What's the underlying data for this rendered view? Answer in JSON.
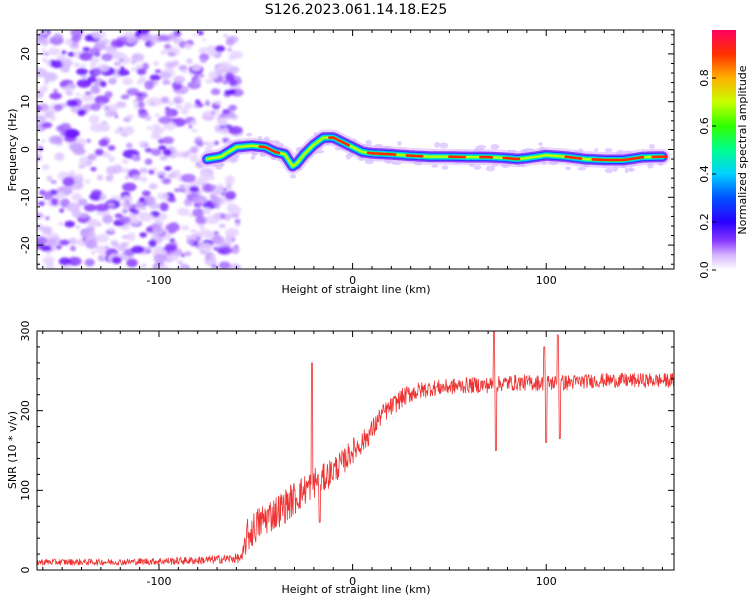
{
  "title": "S126.2023.061.14.18.E25",
  "chart_data": [
    {
      "type": "heatmap",
      "title": "S126.2023.061.14.18.E25",
      "xlabel": "Height of straight line (km)",
      "ylabel": "Frequency (Hz)",
      "xlim": [
        -163,
        166
      ],
      "ylim": [
        -25,
        25
      ],
      "xticks": [
        -100,
        0,
        100
      ],
      "yticks": [
        -20,
        -10,
        0,
        10,
        20
      ],
      "grid": false,
      "description_series": [
        {
          "name": "noise region",
          "x_range": [
            -163,
            -65
          ],
          "freq_range": [
            -25,
            25
          ],
          "amplitude_range": [
            0.1,
            0.3
          ]
        },
        {
          "name": "signal ridge (centre frequency Hz vs height km)",
          "x": [
            -75,
            -68,
            -60,
            -52,
            -45,
            -40,
            -35,
            -31,
            -29,
            -25,
            -20,
            -15,
            -10,
            -5,
            0,
            5,
            10,
            20,
            30,
            40,
            50,
            60,
            70,
            80,
            85,
            90,
            95,
            100,
            110,
            120,
            130,
            140,
            150,
            160
          ],
          "y": [
            -2,
            -1.5,
            0.5,
            0.8,
            0.5,
            -0.5,
            -1,
            -3.5,
            -3,
            -1,
            1,
            2.5,
            2.5,
            1.5,
            0.5,
            -0.5,
            -0.8,
            -1,
            -1.3,
            -1.5,
            -1.5,
            -1.6,
            -1.6,
            -1.8,
            -2,
            -1.8,
            -1.5,
            -1.2,
            -1.5,
            -2,
            -2.2,
            -2.2,
            -1.6,
            -1.5
          ]
        }
      ],
      "colorbar": {
        "label": "Normalized spectral amplitude",
        "range": [
          0,
          1
        ],
        "ticks": [
          "0.0",
          "0.2",
          "0.4",
          "0.6",
          "0.8"
        ],
        "tick_values": [
          0.0,
          0.2,
          0.4,
          0.6,
          0.8
        ],
        "colormap": [
          "#ffffff",
          "#a855f7",
          "#4b00ff",
          "#0040ff",
          "#00ccff",
          "#00ff80",
          "#40ff00",
          "#ccff00",
          "#ffcc00",
          "#ff4000",
          "#ff0050"
        ]
      }
    },
    {
      "type": "line",
      "xlabel": "Height of straight line (km)",
      "ylabel": "SNR (10 * v/v)",
      "xlim": [
        -163,
        166
      ],
      "ylim": [
        0,
        300
      ],
      "xticks": [
        -100,
        0,
        100
      ],
      "yticks": [
        0,
        100,
        200,
        300
      ],
      "grid": false,
      "series": [
        {
          "name": "SNR",
          "color": "#ee3333",
          "x": [
            -163,
            -120,
            -80,
            -57,
            -55,
            -50,
            -45,
            -40,
            -35,
            -30,
            -25,
            -20,
            -15,
            -10,
            -5,
            0,
            5,
            10,
            15,
            20,
            25,
            30,
            40,
            50,
            60,
            70,
            80,
            90,
            100,
            110,
            120,
            130,
            140,
            150,
            166
          ],
          "y": [
            10,
            10,
            12,
            15,
            40,
            55,
            65,
            72,
            80,
            90,
            100,
            110,
            115,
            125,
            135,
            150,
            160,
            175,
            195,
            205,
            215,
            222,
            228,
            230,
            232,
            232,
            235,
            235,
            235,
            235,
            237,
            238,
            238,
            238,
            238
          ],
          "noise_amplitude": [
            4,
            4,
            5,
            6,
            22,
            22,
            22,
            22,
            22,
            22,
            20,
            20,
            18,
            18,
            16,
            16,
            14,
            14,
            12,
            12,
            12,
            12,
            10,
            10,
            10,
            10,
            10,
            10,
            10,
            10,
            9,
            9,
            9,
            9,
            9
          ],
          "spikes": [
            {
              "x": -21,
              "y": 260
            },
            {
              "x": -17,
              "y": 60
            },
            {
              "x": 73,
              "y": 300
            },
            {
              "x": 74,
              "y": 150
            },
            {
              "x": 99,
              "y": 280
            },
            {
              "x": 100,
              "y": 160
            },
            {
              "x": 106,
              "y": 295
            },
            {
              "x": 107,
              "y": 165
            }
          ]
        }
      ]
    }
  ]
}
